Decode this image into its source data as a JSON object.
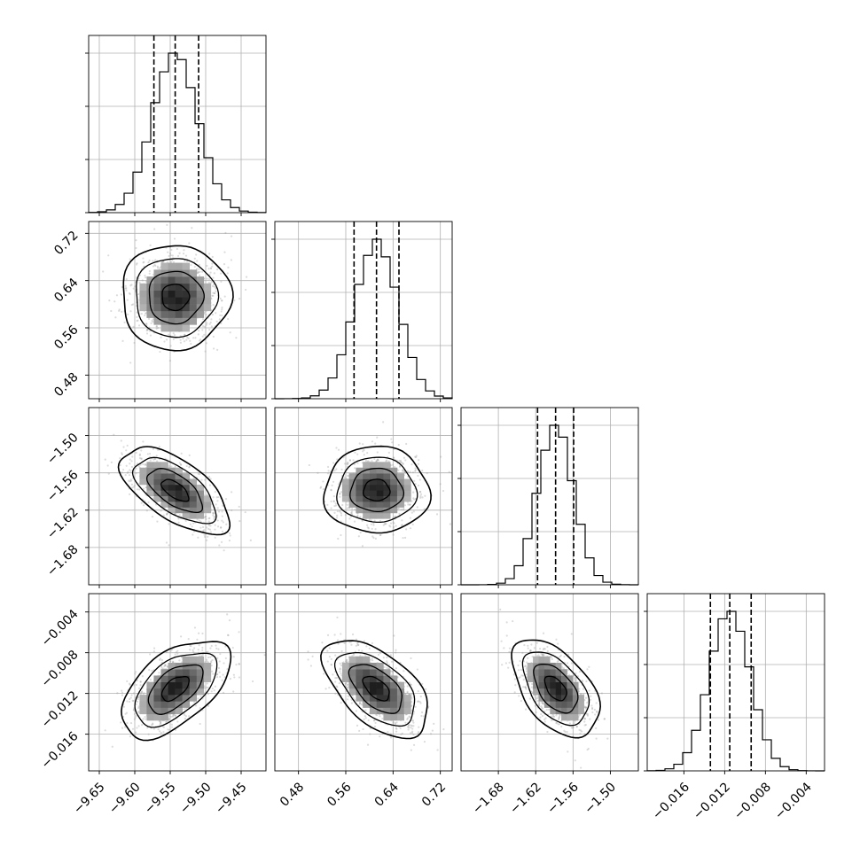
{
  "chart_data": {
    "type": "corner",
    "parameters": [
      {
        "range": [
          -9.665,
          -9.415
        ],
        "ticks": [
          -9.65,
          -9.6,
          -9.55,
          -9.5,
          -9.45
        ],
        "tick_labels": [
          "−9.65",
          "−9.60",
          "−9.55",
          "−9.50",
          "−9.45"
        ],
        "quantiles": [
          -9.573,
          -9.543,
          -9.51
        ],
        "mean": -9.543,
        "sd": 0.032
      },
      {
        "range": [
          0.44,
          0.74
        ],
        "ticks": [
          0.48,
          0.56,
          0.64,
          0.72
        ],
        "tick_labels": [
          "0.48",
          "0.56",
          "0.64",
          "0.72"
        ],
        "quantiles": [
          0.574,
          0.612,
          0.65
        ],
        "mean": 0.612,
        "sd": 0.037
      },
      {
        "range": [
          -1.74,
          -1.455
        ],
        "ticks": [
          -1.68,
          -1.62,
          -1.56,
          -1.5
        ],
        "tick_labels": [
          "−1.68",
          "−1.62",
          "−1.56",
          "−1.50"
        ],
        "quantiles": [
          -1.617,
          -1.588,
          -1.559
        ],
        "mean": -1.588,
        "sd": 0.029
      },
      {
        "range": [
          -0.0196,
          -0.0022
        ],
        "ticks": [
          -0.016,
          -0.012,
          -0.008,
          -0.004
        ],
        "tick_labels": [
          "−0.016",
          "−0.012",
          "−0.008",
          "−0.004"
        ],
        "quantiles": [
          -0.0134,
          -0.0115,
          -0.0094
        ],
        "mean": -0.0115,
        "sd": 0.002
      }
    ],
    "correlations": [
      {
        "i": 1,
        "j": 0,
        "rho": 0.0
      },
      {
        "i": 2,
        "j": 0,
        "rho": -0.62
      },
      {
        "i": 2,
        "j": 1,
        "rho": 0.0
      },
      {
        "i": 3,
        "j": 0,
        "rho": 0.55
      },
      {
        "i": 3,
        "j": 1,
        "rho": -0.55
      },
      {
        "i": 3,
        "j": 2,
        "rho": -0.5
      }
    ],
    "contour_levels_sigma": [
      0.5,
      1.0,
      1.5,
      2.0
    ],
    "grid": true,
    "histogram_bins": 20
  }
}
